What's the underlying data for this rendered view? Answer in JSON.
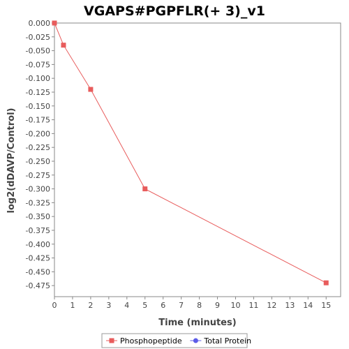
{
  "chart_data": {
    "type": "line",
    "title": "VGAPS#PGPFLR(+ 3)_v1",
    "xlabel": "Time (minutes)",
    "ylabel": "log2(dDAVP/Control)",
    "xlim": [
      0,
      15.8
    ],
    "ylim": [
      -0.495,
      0.0
    ],
    "x_ticks": [
      0,
      1,
      2,
      3,
      4,
      5,
      6,
      7,
      8,
      9,
      10,
      11,
      12,
      13,
      14,
      15
    ],
    "y_ticks": [
      0.0,
      -0.025,
      -0.05,
      -0.075,
      -0.1,
      -0.125,
      -0.15,
      -0.175,
      -0.2,
      -0.225,
      -0.25,
      -0.275,
      -0.3,
      -0.325,
      -0.35,
      -0.375,
      -0.4,
      -0.425,
      -0.45,
      -0.475
    ],
    "y_tick_labels": [
      "0.000",
      "-0.025",
      "-0.050",
      "-0.075",
      "-0.100",
      "-0.125",
      "-0.150",
      "-0.175",
      "-0.200",
      "-0.225",
      "-0.250",
      "-0.275",
      "-0.300",
      "-0.325",
      "-0.350",
      "-0.375",
      "-0.400",
      "-0.425",
      "-0.450",
      "-0.475"
    ],
    "grid": false,
    "legend_position": "bottom",
    "series": [
      {
        "name": "Phosphopeptide",
        "color": "#e85c5c",
        "marker": "square",
        "x": [
          0,
          0.5,
          2,
          5,
          15
        ],
        "y": [
          0.0,
          -0.04,
          -0.12,
          -0.3,
          -0.47
        ]
      },
      {
        "name": "Total Protein",
        "color": "#5c5ce8",
        "marker": "circle",
        "x": [],
        "y": []
      }
    ]
  }
}
